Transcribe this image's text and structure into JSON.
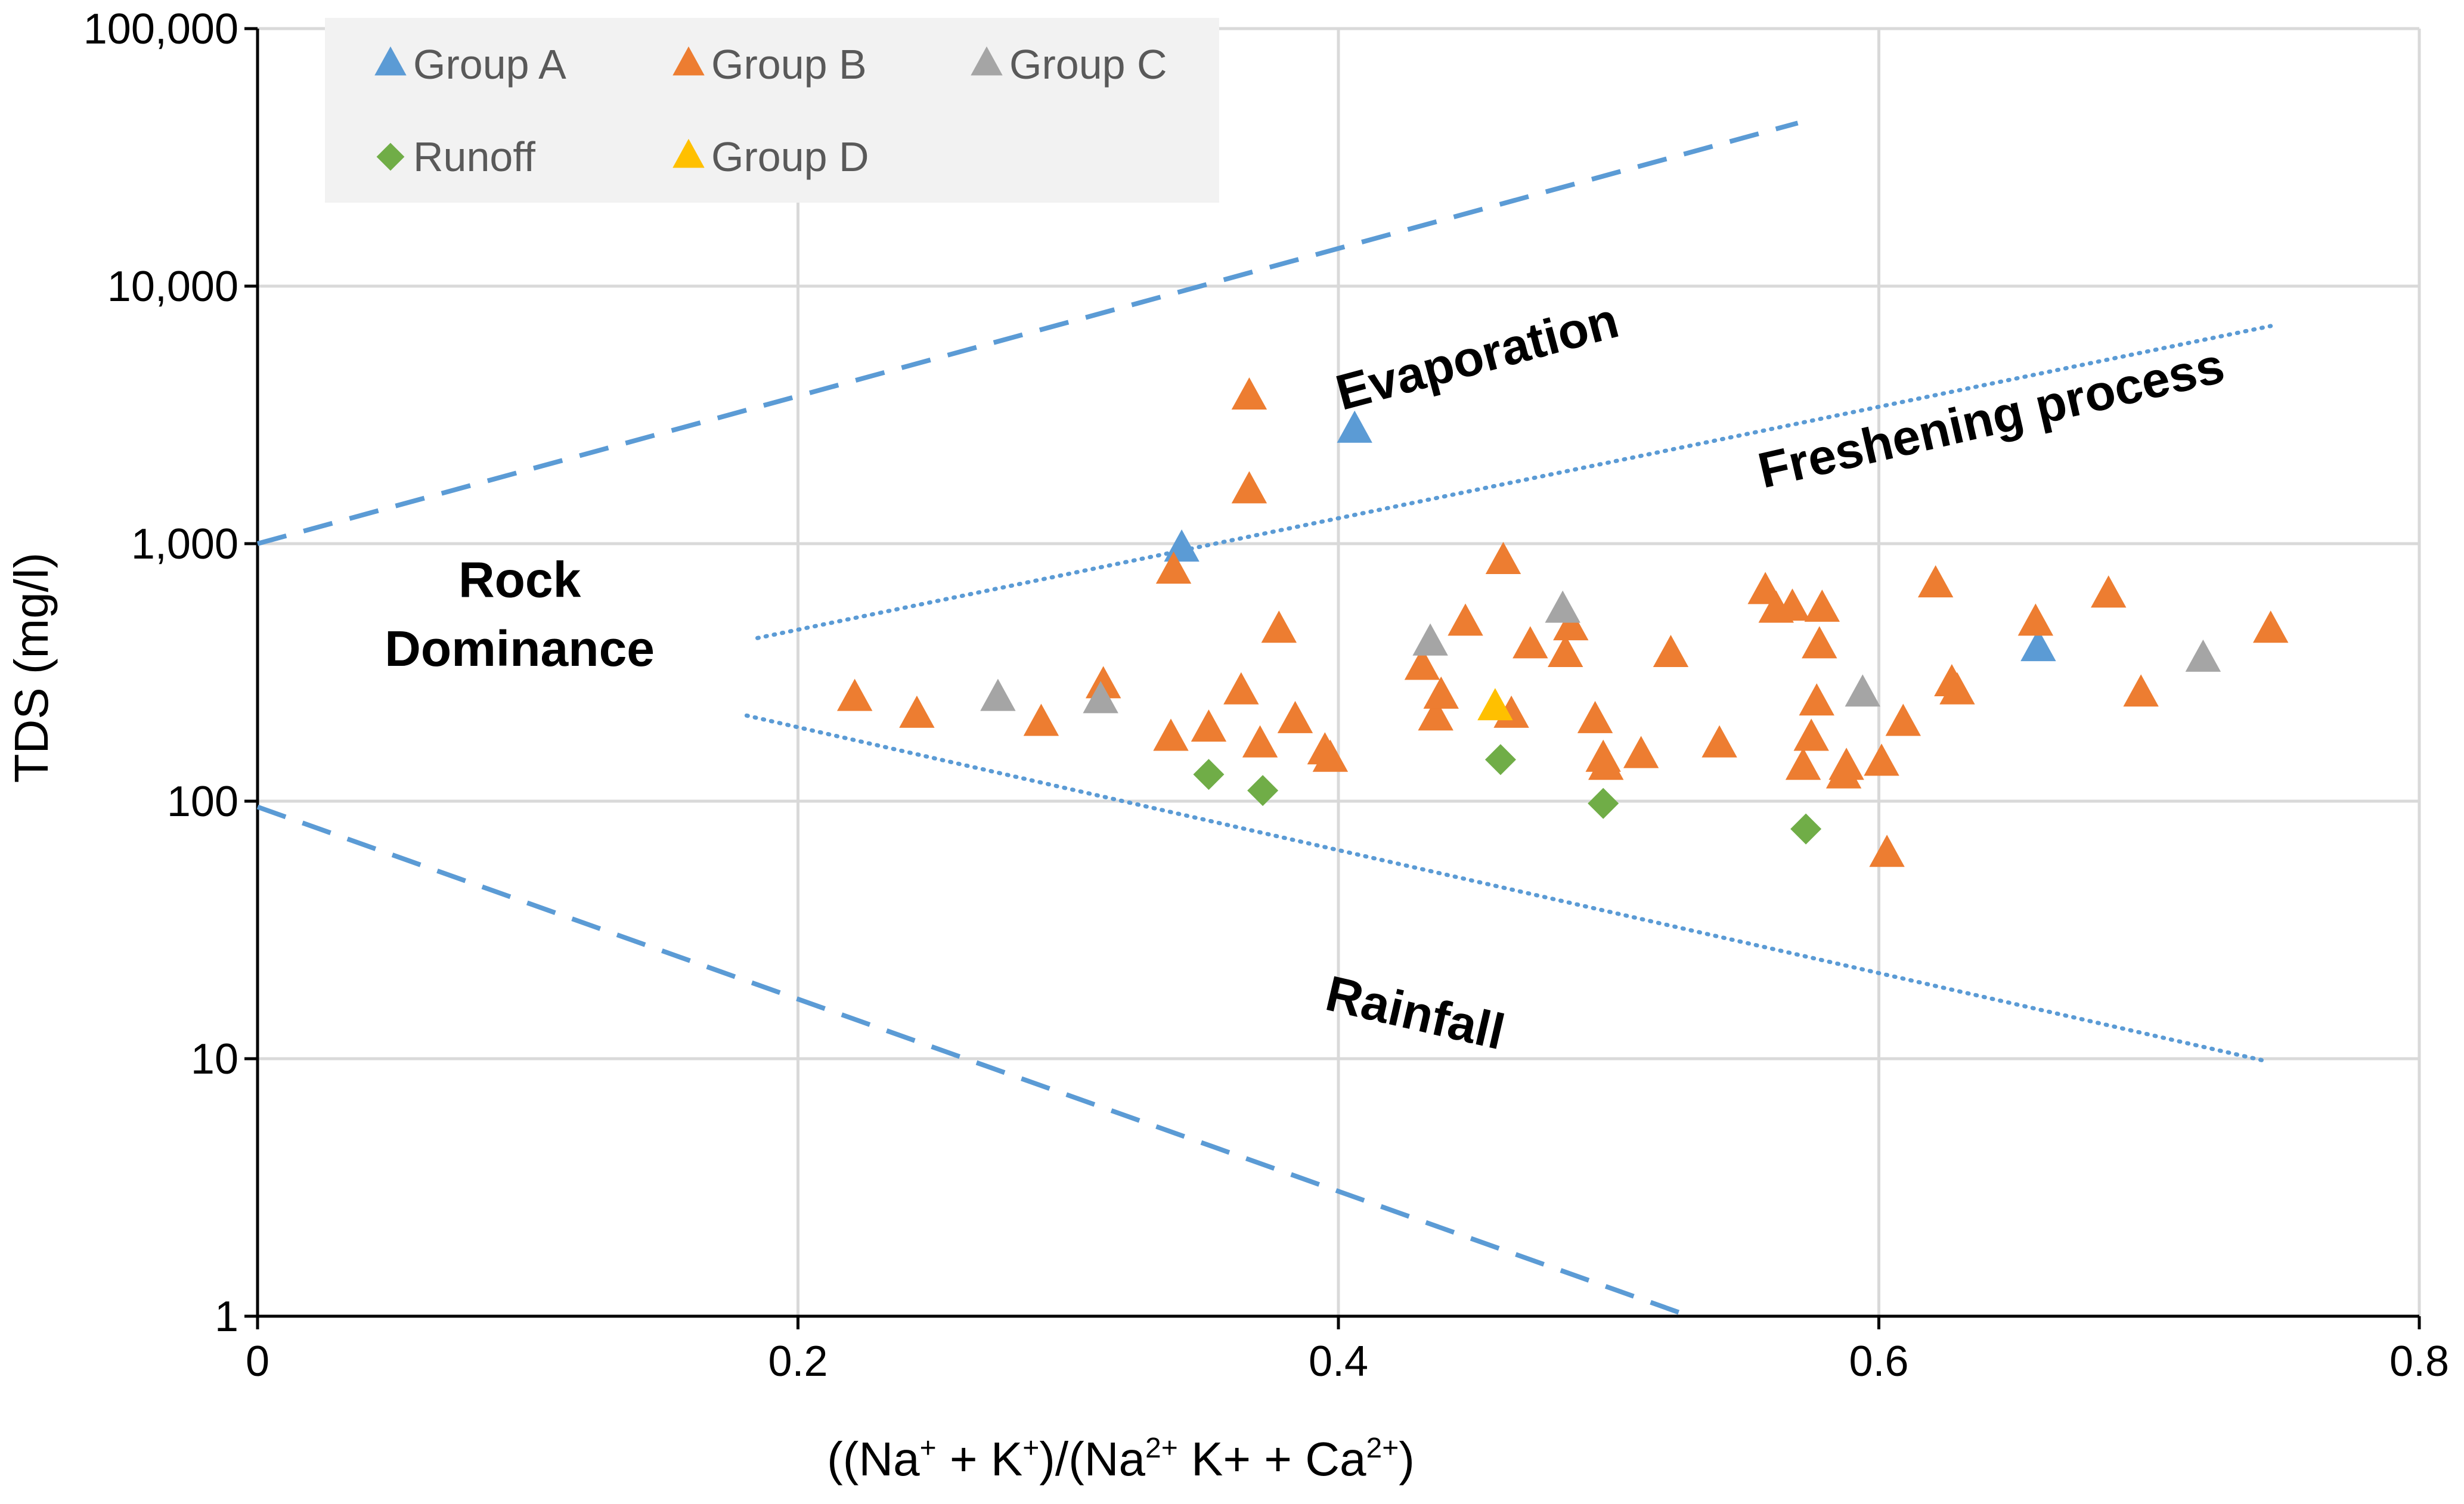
{
  "chart_data": {
    "type": "scatter",
    "xlabel_parts": {
      "open": "((Na",
      "sup1": "+",
      "p2": " + K",
      "sup2": "+",
      "p3": ")/(Na",
      "sup3": "2+",
      "p4": " K+ + Ca",
      "sup4": "2+",
      "close": ")"
    },
    "ylabel": "TDS (mg/l)",
    "xlim": [
      0,
      0.8
    ],
    "ylim": [
      1,
      100000
    ],
    "yscale": "log",
    "grid": true,
    "x_ticks": [
      {
        "value": 0,
        "label": "0"
      },
      {
        "value": 0.2,
        "label": "0.2"
      },
      {
        "value": 0.4,
        "label": "0.4"
      },
      {
        "value": 0.6,
        "label": "0.6"
      },
      {
        "value": 0.8,
        "label": "0.8"
      }
    ],
    "y_ticks": [
      {
        "value": 1,
        "label": "1"
      },
      {
        "value": 10,
        "label": "10"
      },
      {
        "value": 100,
        "label": "100"
      },
      {
        "value": 1000,
        "label": "1,000"
      },
      {
        "value": 10000,
        "label": "10,000"
      },
      {
        "value": 100000,
        "label": "100,000"
      }
    ],
    "legend_position": "top-left",
    "legend_rows": [
      [
        0,
        1,
        2
      ],
      [
        3,
        4
      ]
    ],
    "series": [
      {
        "name": "Group A",
        "marker": "triangle",
        "color": "#5B9BD5",
        "points": [
          [
            0.342,
            950
          ],
          [
            0.406,
            2750
          ],
          [
            0.659,
            390
          ]
        ]
      },
      {
        "name": "Group B",
        "marker": "triangle",
        "color": "#ED7D31",
        "points": [
          [
            0.367,
            3700
          ],
          [
            0.367,
            1600
          ],
          [
            0.339,
            780
          ],
          [
            0.221,
            250
          ],
          [
            0.244,
            215
          ],
          [
            0.29,
            200
          ],
          [
            0.313,
            280
          ],
          [
            0.338,
            175
          ],
          [
            0.352,
            190
          ],
          [
            0.364,
            265
          ],
          [
            0.371,
            165
          ],
          [
            0.378,
            460
          ],
          [
            0.384,
            205
          ],
          [
            0.395,
            155
          ],
          [
            0.397,
            145
          ],
          [
            0.431,
            330
          ],
          [
            0.436,
            210
          ],
          [
            0.438,
            255
          ],
          [
            0.447,
            490
          ],
          [
            0.461,
            850
          ],
          [
            0.464,
            215
          ],
          [
            0.471,
            400
          ],
          [
            0.484,
            370
          ],
          [
            0.486,
            470
          ],
          [
            0.495,
            205
          ],
          [
            0.498,
            145
          ],
          [
            0.499,
            135
          ],
          [
            0.512,
            150
          ],
          [
            0.523,
            370
          ],
          [
            0.541,
            165
          ],
          [
            0.558,
            650
          ],
          [
            0.562,
            550
          ],
          [
            0.568,
            560
          ],
          [
            0.572,
            135
          ],
          [
            0.575,
            175
          ],
          [
            0.577,
            240
          ],
          [
            0.578,
            400
          ],
          [
            0.579,
            555
          ],
          [
            0.587,
            125
          ],
          [
            0.588,
            135
          ],
          [
            0.601,
            140
          ],
          [
            0.603,
            62
          ],
          [
            0.609,
            200
          ],
          [
            0.621,
            690
          ],
          [
            0.627,
            285
          ],
          [
            0.629,
            265
          ],
          [
            0.658,
            490
          ],
          [
            0.685,
            630
          ],
          [
            0.697,
            260
          ],
          [
            0.745,
            460
          ]
        ]
      },
      {
        "name": "Group C",
        "marker": "triangle",
        "color": "#A5A5A5",
        "points": [
          [
            0.274,
            250
          ],
          [
            0.312,
            245
          ],
          [
            0.434,
            410
          ],
          [
            0.483,
            550
          ],
          [
            0.594,
            260
          ],
          [
            0.72,
            355
          ]
        ]
      },
      {
        "name": "Runoff",
        "marker": "diamond",
        "color": "#70AD47",
        "points": [
          [
            0.352,
            127
          ],
          [
            0.372,
            110
          ],
          [
            0.46,
            145
          ],
          [
            0.498,
            98
          ],
          [
            0.573,
            78
          ]
        ]
      },
      {
        "name": "Group D",
        "marker": "triangle",
        "color": "#FFC000",
        "points": [
          [
            0.458,
            230
          ]
        ]
      }
    ],
    "reference_lines": [
      {
        "name": "evaporation-boundary",
        "style": "dashed",
        "color": "#5B9BD5",
        "points": [
          [
            0.0,
            1000
          ],
          [
            0.57,
            43000
          ]
        ]
      },
      {
        "name": "rainfall-boundary",
        "style": "dashed",
        "color": "#5B9BD5",
        "points": [
          [
            0.0,
            95
          ],
          [
            0.53,
            1
          ]
        ]
      },
      {
        "name": "freshening-upper",
        "style": "dotted",
        "color": "#5B9BD5",
        "points": [
          [
            0.185,
            430
          ],
          [
            0.745,
            7000
          ]
        ]
      },
      {
        "name": "freshening-lower",
        "style": "dotted",
        "color": "#5B9BD5",
        "points": [
          [
            0.181,
            215
          ],
          [
            0.743,
            9.8
          ]
        ]
      }
    ],
    "annotations": [
      {
        "name": "evaporation-label",
        "text": "Evaporation",
        "x": 0.453,
        "y": 4600,
        "angle": -15
      },
      {
        "name": "freshening-label",
        "text": "Freshening process",
        "x": 0.643,
        "y": 2650,
        "angle": -13
      },
      {
        "name": "rainfall-label",
        "text": "Rainfall",
        "x": 0.427,
        "y": 13,
        "angle": 13
      },
      {
        "name": "rock-label-line1",
        "text": "Rock",
        "x": 0.097,
        "y": 620,
        "angle": 0
      },
      {
        "name": "rock-label-line2",
        "text": "Dominance",
        "x": 0.097,
        "y": 335,
        "angle": 0
      }
    ]
  }
}
